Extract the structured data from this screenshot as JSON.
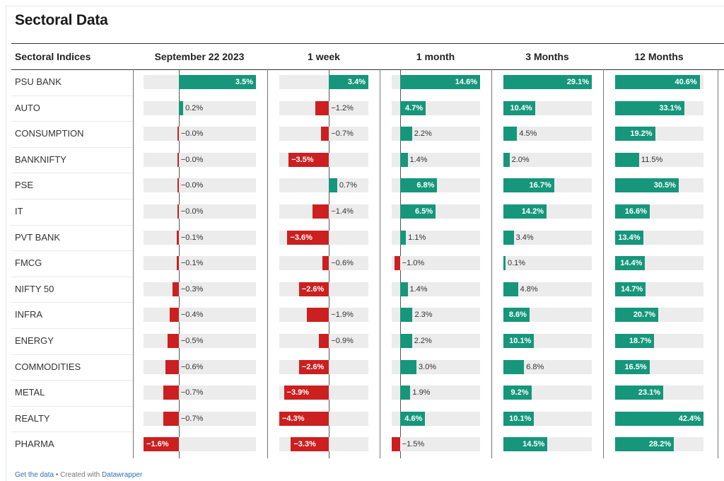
{
  "title": "Sectoral Data",
  "footer": {
    "get_data": "Get the data",
    "sep": " • Created with ",
    "brand": "Datawrapper"
  },
  "colors": {
    "positive": "#16967b",
    "negative": "#cc1f1f",
    "track": "#ececec"
  },
  "chart_data": {
    "type": "table",
    "label_column": "Sectoral Indices",
    "columns": [
      "September 22 2023",
      "1 week",
      "1 month",
      "3 Months",
      "12 Months"
    ],
    "value_format": "percent",
    "rows": [
      {
        "name": "PSU BANK",
        "values": [
          3.5,
          3.4,
          14.6,
          29.1,
          40.6
        ]
      },
      {
        "name": "AUTO",
        "values": [
          0.2,
          -1.2,
          4.7,
          10.4,
          33.1
        ]
      },
      {
        "name": "CONSUMPTION",
        "values": [
          -0.0,
          -0.7,
          2.2,
          4.5,
          19.2
        ]
      },
      {
        "name": "BANKNIFTY",
        "values": [
          -0.0,
          -3.5,
          1.4,
          2.0,
          11.5
        ]
      },
      {
        "name": "PSE",
        "values": [
          -0.0,
          0.7,
          6.8,
          16.7,
          30.5
        ]
      },
      {
        "name": "IT",
        "values": [
          -0.0,
          -1.4,
          6.5,
          14.2,
          16.6
        ]
      },
      {
        "name": "PVT BANK",
        "values": [
          -0.1,
          -3.6,
          1.1,
          3.4,
          13.4
        ]
      },
      {
        "name": "FMCG",
        "values": [
          -0.1,
          -0.6,
          -1.0,
          0.1,
          14.4
        ]
      },
      {
        "name": "NIFTY 50",
        "values": [
          -0.3,
          -2.6,
          1.4,
          4.8,
          14.7
        ]
      },
      {
        "name": "INFRA",
        "values": [
          -0.4,
          -1.9,
          2.3,
          8.6,
          20.7
        ]
      },
      {
        "name": "ENERGY",
        "values": [
          -0.5,
          -0.9,
          2.2,
          10.1,
          18.7
        ]
      },
      {
        "name": "COMMODITIES",
        "values": [
          -0.6,
          -2.6,
          3.0,
          6.8,
          16.5
        ]
      },
      {
        "name": "METAL",
        "values": [
          -0.7,
          -3.9,
          1.9,
          9.2,
          23.1
        ]
      },
      {
        "name": "REALTY",
        "values": [
          -0.7,
          -4.3,
          4.6,
          10.1,
          42.4
        ]
      },
      {
        "name": "PHARMA",
        "values": [
          -1.6,
          -3.3,
          -1.5,
          14.5,
          28.2
        ]
      }
    ],
    "value_labels": [
      [
        "3.5%",
        "3.4%",
        "14.6%",
        "29.1%",
        "40.6%"
      ],
      [
        "0.2%",
        "−1.2%",
        "4.7%",
        "10.4%",
        "33.1%"
      ],
      [
        "−0.0%",
        "−0.7%",
        "2.2%",
        "4.5%",
        "19.2%"
      ],
      [
        "−0.0%",
        "−3.5%",
        "1.4%",
        "2.0%",
        "11.5%"
      ],
      [
        "−0.0%",
        "0.7%",
        "6.8%",
        "16.7%",
        "30.5%"
      ],
      [
        "−0.0%",
        "−1.4%",
        "6.5%",
        "14.2%",
        "16.6%"
      ],
      [
        "−0.1%",
        "−3.6%",
        "1.1%",
        "3.4%",
        "13.4%"
      ],
      [
        "−0.1%",
        "−0.6%",
        "−1.0%",
        "0.1%",
        "14.4%"
      ],
      [
        "−0.3%",
        "−2.6%",
        "1.4%",
        "4.8%",
        "14.7%"
      ],
      [
        "−0.4%",
        "−1.9%",
        "2.3%",
        "8.6%",
        "20.7%"
      ],
      [
        "−0.5%",
        "−0.9%",
        "2.2%",
        "10.1%",
        "18.7%"
      ],
      [
        "−0.6%",
        "−2.6%",
        "3.0%",
        "6.8%",
        "16.5%"
      ],
      [
        "−0.7%",
        "−3.9%",
        "1.9%",
        "9.2%",
        "23.1%"
      ],
      [
        "−0.7%",
        "−4.3%",
        "4.6%",
        "10.1%",
        "42.4%"
      ],
      [
        "−1.6%",
        "−3.3%",
        "−1.5%",
        "14.5%",
        "28.2%"
      ]
    ],
    "column_ranges": [
      [
        -1.6,
        3.5
      ],
      [
        -4.3,
        3.4
      ],
      [
        -1.5,
        14.6
      ],
      [
        0,
        29.1
      ],
      [
        0,
        42.4
      ]
    ]
  }
}
